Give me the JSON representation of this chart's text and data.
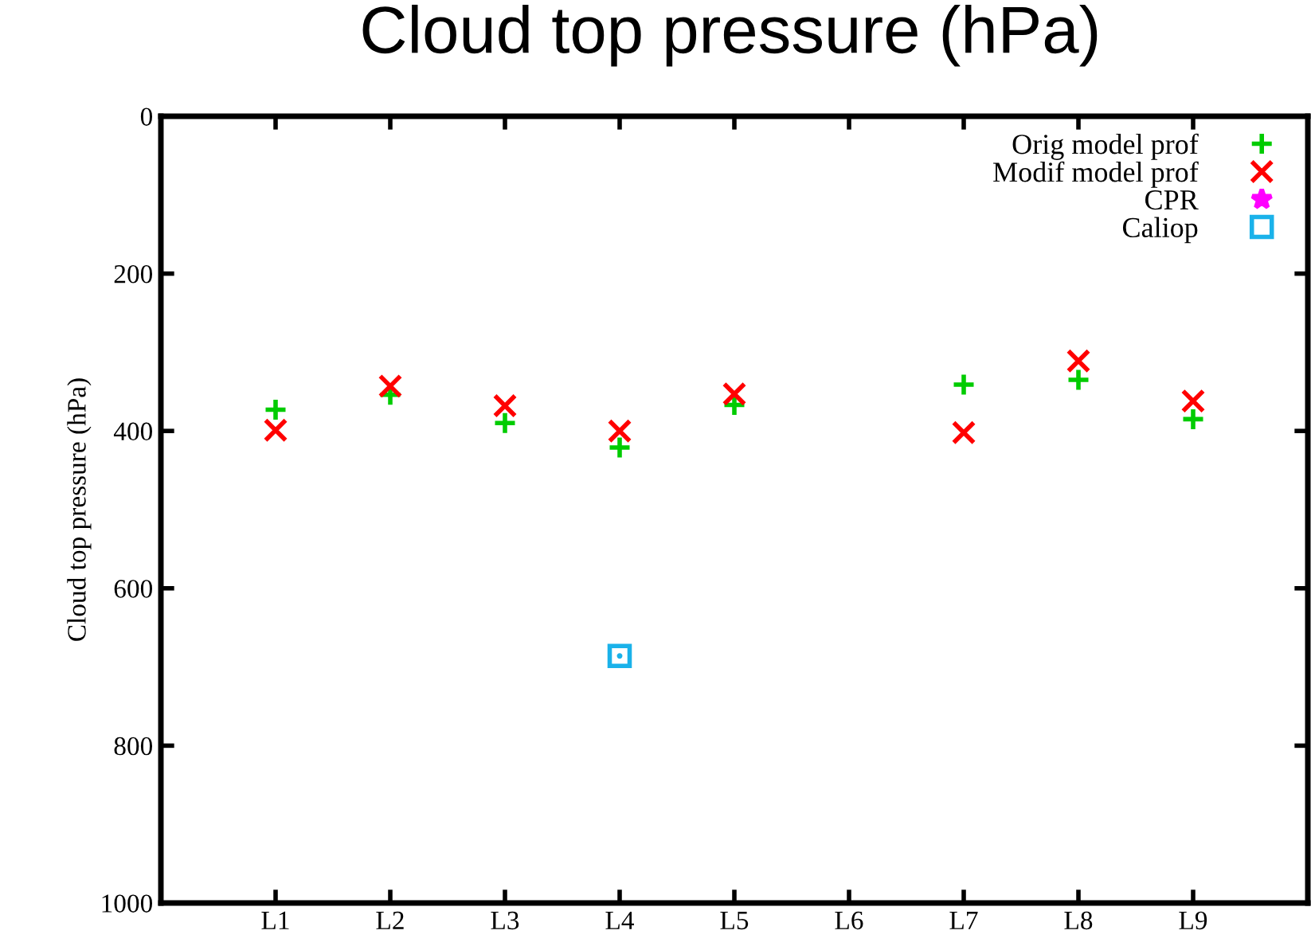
{
  "chart_data": {
    "type": "scatter",
    "title": "Cloud top pressure (hPa)",
    "ylabel": "Cloud top pressure (hPa)",
    "categories": [
      "L1",
      "L2",
      "L3",
      "L4",
      "L5",
      "L6",
      "L7",
      "L8",
      "L9"
    ],
    "ylim": [
      1000,
      0
    ],
    "yticks": [
      0,
      200,
      400,
      600,
      800,
      1000
    ],
    "grid": false,
    "legend": "top right",
    "series": [
      {
        "name": "Orig model prof",
        "color": "#00cc00",
        "marker": "plus",
        "values": [
          373,
          354,
          390,
          421,
          367,
          null,
          341,
          335,
          385
        ]
      },
      {
        "name": "Modif model prof",
        "color": "#ff0000",
        "marker": "cross",
        "values": [
          399,
          343,
          368,
          400,
          353,
          null,
          402,
          311,
          362
        ]
      },
      {
        "name": "CPR",
        "color": "#ff00ff",
        "marker": "star",
        "values": [
          null,
          null,
          null,
          null,
          null,
          null,
          null,
          null,
          null
        ]
      },
      {
        "name": "Caliop",
        "color": "#1ab2ea",
        "marker": "square",
        "values": [
          null,
          null,
          null,
          686,
          null,
          null,
          null,
          null,
          null
        ]
      }
    ]
  }
}
